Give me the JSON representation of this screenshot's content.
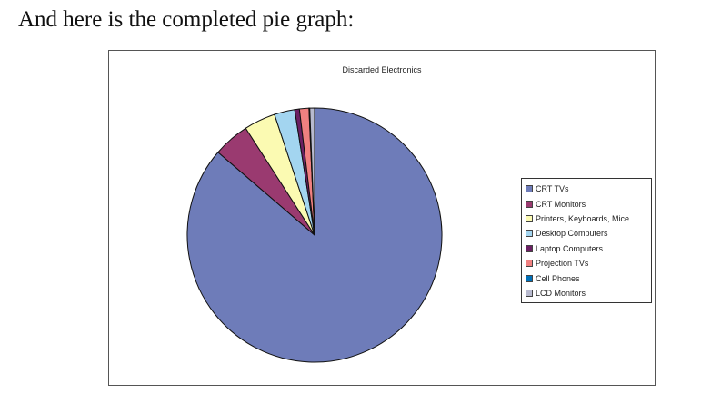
{
  "intro_text": "And here is the completed pie graph:",
  "chart_data": {
    "type": "pie",
    "title": "Discarded Electronics",
    "legend_position": "right",
    "labels": [
      "CRT TVs",
      "CRT Monitors",
      "Printers, Keyboards, Mice",
      "Desktop Computers",
      "Laptop Computers",
      "Projection TVs",
      "Cell Phones",
      "LCD Monitors"
    ],
    "values": [
      86.3,
      4.6,
      4.0,
      2.6,
      0.6,
      1.2,
      0.1,
      0.6
    ],
    "colors": [
      "#6e7cb9",
      "#9a3a70",
      "#fbfab2",
      "#a3d5f0",
      "#6b1f63",
      "#f08080",
      "#0070b8",
      "#b8bacf"
    ]
  }
}
